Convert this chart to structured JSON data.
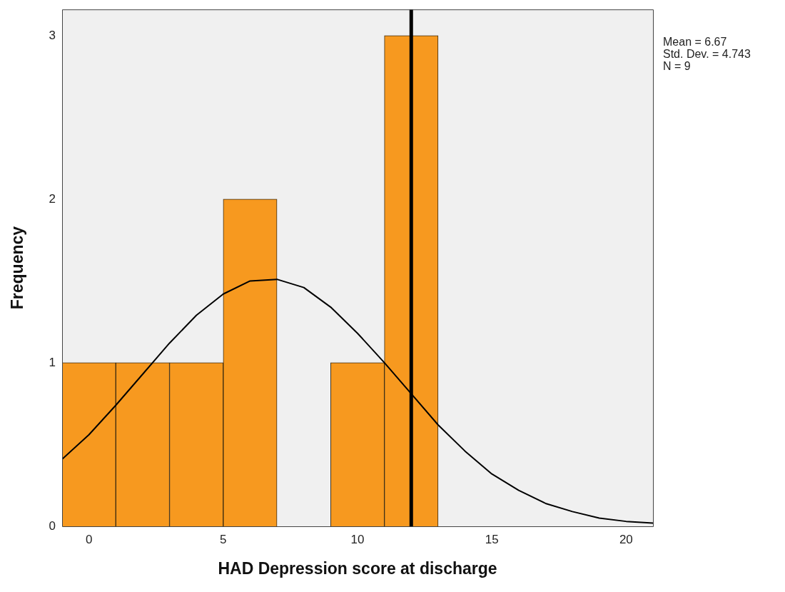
{
  "chart_data": {
    "type": "histogram",
    "xlabel": "HAD Depression score at discharge",
    "ylabel": "Frequency",
    "bins": [
      -1,
      1,
      3,
      5,
      7,
      9,
      11,
      13
    ],
    "values": [
      1,
      1,
      1,
      2,
      0,
      1,
      3
    ],
    "color": "#f7991f",
    "series": [
      {
        "type": "line",
        "color": "#000000",
        "x": [
          -1,
          0,
          1,
          2,
          3,
          4,
          5,
          6,
          7,
          8,
          9,
          10,
          11,
          12,
          13,
          14,
          15,
          16,
          17,
          18,
          19,
          20,
          21
        ],
        "values": [
          0.41,
          0.56,
          0.74,
          0.93,
          1.12,
          1.29,
          1.42,
          1.5,
          1.51,
          1.46,
          1.34,
          1.18,
          1.0,
          0.81,
          0.62,
          0.46,
          0.32,
          0.22,
          0.14,
          0.09,
          0.05,
          0.03,
          0.02
        ]
      }
    ],
    "ref_lines": [
      {
        "axis": "x",
        "value": 12,
        "color": "#000000"
      }
    ],
    "annotations": [
      "Mean = 6.67",
      "Std. Dev. = 4.743",
      "N = 9"
    ],
    "xlim": [
      -1,
      21
    ],
    "xticks": [
      0,
      5,
      10,
      15,
      20
    ],
    "ylim": [
      0,
      3.16
    ],
    "yticks": [
      0,
      1,
      2,
      3
    ],
    "grid": false,
    "legend": false,
    "marker": "none",
    "line_style": "solid"
  }
}
